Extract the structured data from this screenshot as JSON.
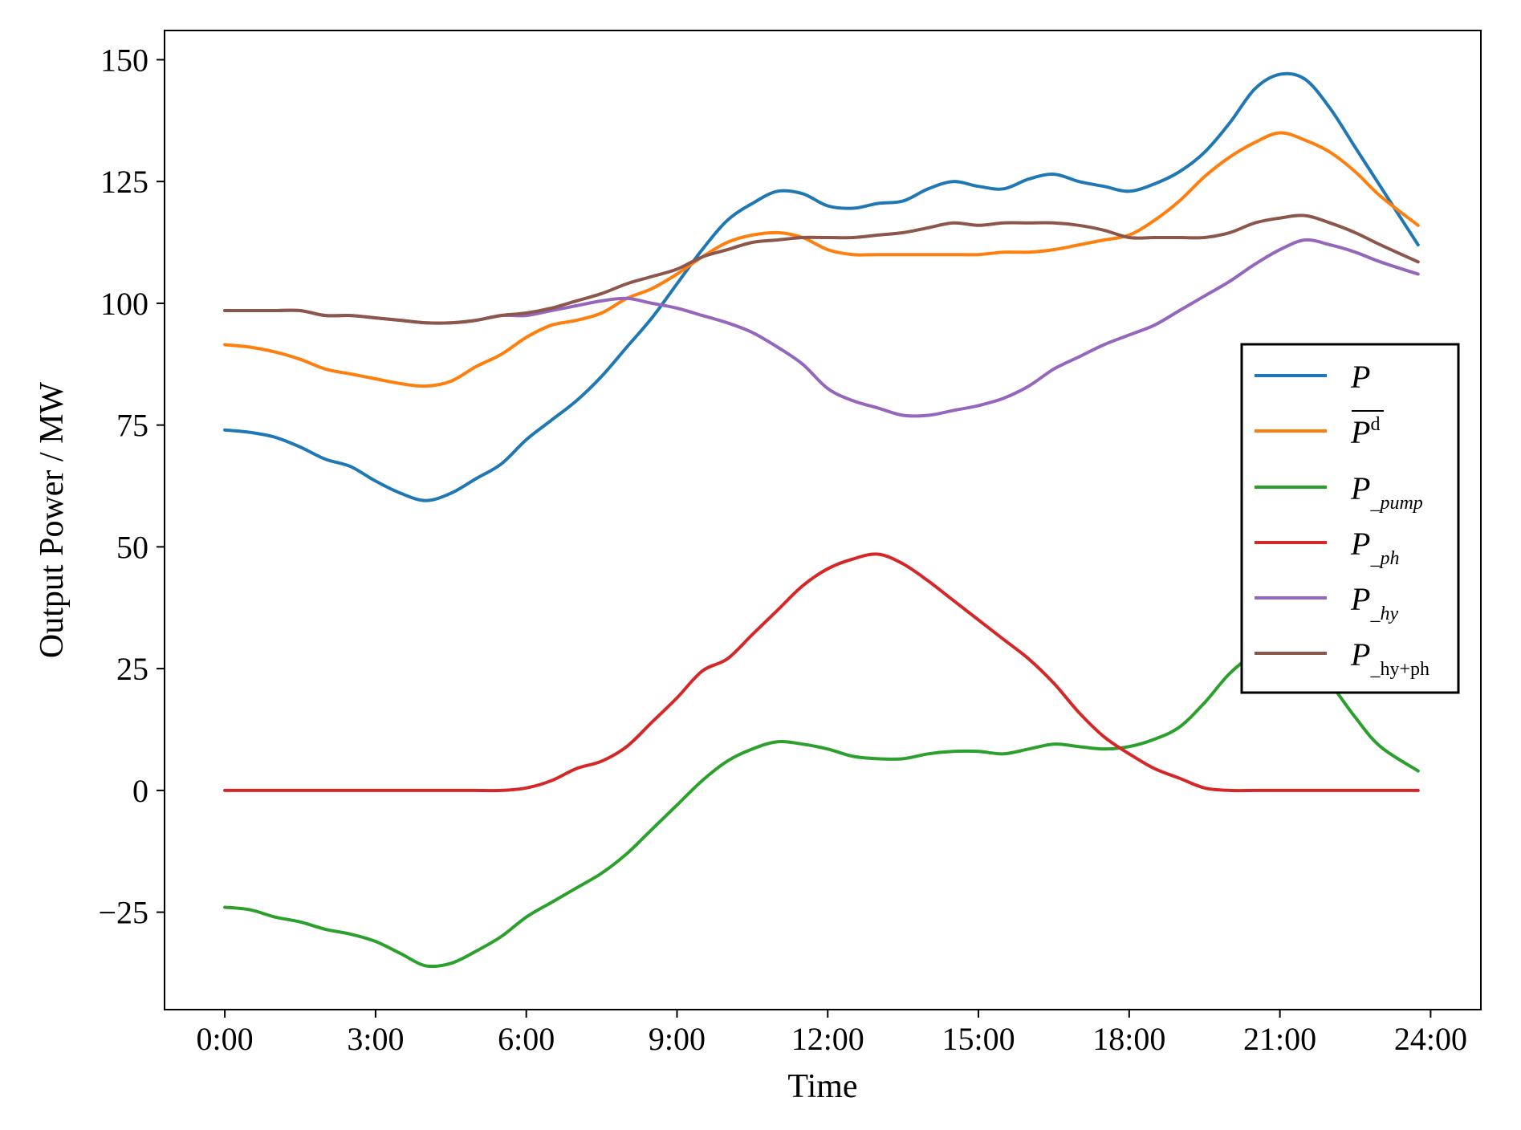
{
  "chart_data": {
    "type": "line",
    "xlabel": "Time",
    "ylabel": "Output Power / MW",
    "xlim": [
      -1.2,
      25.0
    ],
    "ylim": [
      -45,
      156
    ],
    "xticks": [
      0,
      3,
      6,
      9,
      12,
      15,
      18,
      21,
      24
    ],
    "xtick_labels": [
      "0:00",
      "3:00",
      "6:00",
      "9:00",
      "12:00",
      "15:00",
      "18:00",
      "21:00",
      "24:00"
    ],
    "yticks": [
      -25,
      0,
      25,
      50,
      75,
      100,
      125,
      150
    ],
    "ytick_labels": [
      "−25",
      "0",
      "25",
      "50",
      "75",
      "100",
      "125",
      "150"
    ],
    "grid": false,
    "legend_position": "right",
    "x": [
      0,
      0.5,
      1,
      1.5,
      2,
      2.5,
      3,
      3.5,
      4,
      4.5,
      5,
      5.5,
      6,
      6.5,
      7,
      7.5,
      8,
      8.5,
      9,
      9.5,
      10,
      10.5,
      11,
      11.5,
      12,
      12.5,
      13,
      13.5,
      14,
      14.5,
      15,
      15.5,
      16,
      16.5,
      17,
      17.5,
      18,
      18.5,
      19,
      19.5,
      20,
      20.5,
      21,
      21.5,
      22,
      22.5,
      23,
      23.75
    ],
    "series": [
      {
        "name": "P",
        "color": "#1f77b4",
        "values": [
          74,
          73.5,
          72.5,
          70.5,
          68,
          66.5,
          63.5,
          61,
          59.5,
          61,
          64,
          67,
          72,
          76,
          80,
          85,
          91,
          97,
          104,
          111,
          117,
          120.5,
          123,
          122.5,
          120,
          119.5,
          120.5,
          121,
          123.5,
          125,
          124,
          123.5,
          125.5,
          126.5,
          125,
          124,
          123,
          124.5,
          127,
          131,
          137,
          144,
          147,
          146,
          140,
          132,
          124,
          112
        ]
      },
      {
        "name": "P^d",
        "color": "#ff7f0e",
        "values": [
          91.5,
          91,
          90,
          88.5,
          86.5,
          85.5,
          84.5,
          83.5,
          83,
          84,
          87,
          89.5,
          93,
          95.5,
          96.5,
          98,
          101,
          103,
          106,
          109.5,
          112.5,
          114,
          114.5,
          113.5,
          111,
          110,
          110,
          110,
          110,
          110,
          110,
          110.5,
          110.5,
          111,
          112,
          113,
          114,
          117,
          121,
          126,
          130,
          133,
          135,
          133.5,
          131,
          127,
          122,
          116
        ]
      },
      {
        "name": "P_pump",
        "color": "#2ca02c",
        "values": [
          -24,
          -24.5,
          -26,
          -27,
          -28.5,
          -29.5,
          -31,
          -33.5,
          -36,
          -35.5,
          -33,
          -30,
          -26,
          -23,
          -20,
          -17,
          -13,
          -8,
          -3,
          2,
          6,
          8.5,
          10,
          9.5,
          8.5,
          7,
          6.5,
          6.5,
          7.5,
          8,
          8,
          7.5,
          8.5,
          9.5,
          9,
          8.5,
          9,
          10.5,
          13,
          18,
          24,
          28,
          30,
          28,
          22,
          15,
          9,
          4
        ]
      },
      {
        "name": "P_ph",
        "color": "#d62728",
        "values": [
          0,
          0,
          0,
          0,
          0,
          0,
          0,
          0,
          0,
          0,
          0,
          0,
          0.5,
          2,
          4.5,
          6,
          9,
          14,
          19,
          24.5,
          27,
          32,
          37,
          42,
          45.5,
          47.5,
          48.5,
          46.5,
          43,
          39,
          35,
          31,
          27,
          22,
          16,
          11,
          7.5,
          4.5,
          2.5,
          0.5,
          0,
          0,
          0,
          0,
          0,
          0,
          0,
          0
        ]
      },
      {
        "name": "P_hy",
        "color": "#9467bd",
        "values": [
          98.5,
          98.5,
          98.5,
          98.5,
          97.5,
          97.5,
          97,
          96.5,
          96,
          96,
          96.5,
          97.5,
          97.5,
          98.5,
          99.5,
          100.5,
          101,
          100,
          99,
          97.5,
          96,
          94,
          91,
          87.5,
          82.5,
          80,
          78.5,
          77,
          77,
          78,
          79,
          80.5,
          83,
          86.5,
          89,
          91.5,
          93.5,
          95.5,
          98.5,
          101.5,
          104.5,
          108,
          111,
          113,
          112,
          110.5,
          108.5,
          106
        ]
      },
      {
        "name": "P_hy+ph",
        "color": "#8c564b",
        "values": [
          98.5,
          98.5,
          98.5,
          98.5,
          97.5,
          97.5,
          97,
          96.5,
          96,
          96,
          96.5,
          97.5,
          98,
          99,
          100.5,
          102,
          104,
          105.5,
          107,
          109.5,
          111,
          112.5,
          113,
          113.5,
          113.5,
          113.5,
          114,
          114.5,
          115.5,
          116.5,
          116,
          116.5,
          116.5,
          116.5,
          116,
          115,
          113.5,
          113.5,
          113.5,
          113.5,
          114.5,
          116.5,
          117.5,
          118,
          116.5,
          114.5,
          112,
          108.5
        ]
      }
    ]
  }
}
